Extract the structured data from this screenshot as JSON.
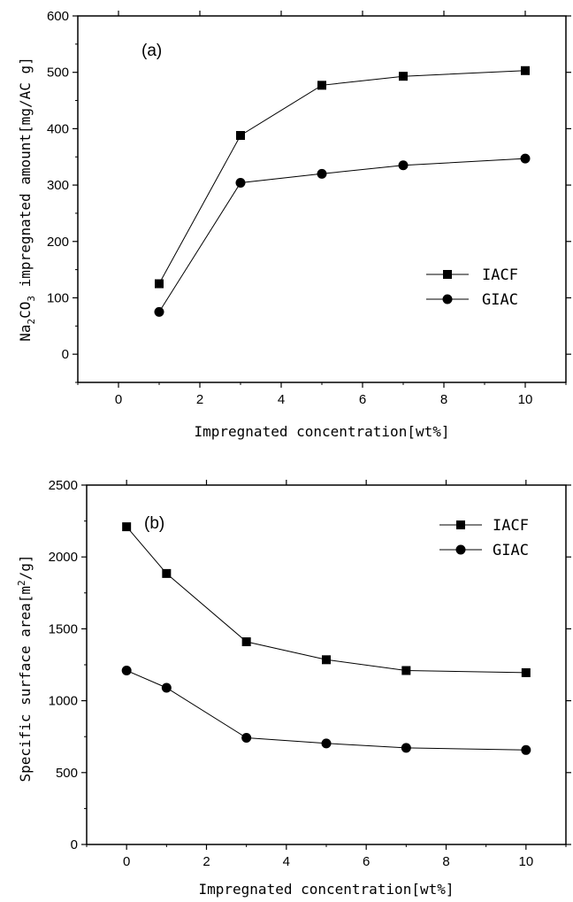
{
  "chart_data": [
    {
      "type": "line",
      "panel_label": "(a)",
      "xlabel": "Impregnated concentration[wt%]",
      "ylabel": {
        "prefix": "Na",
        "sub1": "2",
        "mid": "CO",
        "sub2": "3",
        "suffix": " impregnated amount[mg/AC g]"
      },
      "xlim": [
        -1,
        11
      ],
      "ylim": [
        -50,
        600
      ],
      "xticks": [
        0,
        2,
        4,
        6,
        8,
        10
      ],
      "yticks": [
        0,
        100,
        200,
        300,
        400,
        500,
        600
      ],
      "grid": false,
      "legend_position": "center-right",
      "series": [
        {
          "name": "IACF",
          "marker": "square",
          "x": [
            1,
            3,
            5,
            7,
            10
          ],
          "y": [
            125,
            388,
            477,
            493,
            503
          ]
        },
        {
          "name": "GIAC",
          "marker": "circle",
          "x": [
            1,
            3,
            5,
            7,
            10
          ],
          "y": [
            75,
            304,
            320,
            335,
            347
          ]
        }
      ]
    },
    {
      "type": "line",
      "panel_label": "(b)",
      "xlabel": "Impregnated concentration[wt%]",
      "ylabel": {
        "prefix": "Specific surface area[m",
        "sup": "2",
        "suffix": "/g]"
      },
      "xlim": [
        -1,
        11
      ],
      "ylim": [
        0,
        2500
      ],
      "xticks": [
        0,
        2,
        4,
        6,
        8,
        10
      ],
      "yticks": [
        0,
        500,
        1000,
        1500,
        2000,
        2500
      ],
      "grid": false,
      "legend_position": "top-right",
      "series": [
        {
          "name": "IACF",
          "marker": "square",
          "x": [
            0,
            1,
            3,
            5,
            7,
            10
          ],
          "y": [
            2210,
            1885,
            1410,
            1285,
            1210,
            1195
          ]
        },
        {
          "name": "GIAC",
          "marker": "circle",
          "x": [
            0,
            1,
            3,
            5,
            7,
            10
          ],
          "y": [
            1210,
            1090,
            742,
            703,
            672,
            657
          ]
        }
      ]
    }
  ]
}
